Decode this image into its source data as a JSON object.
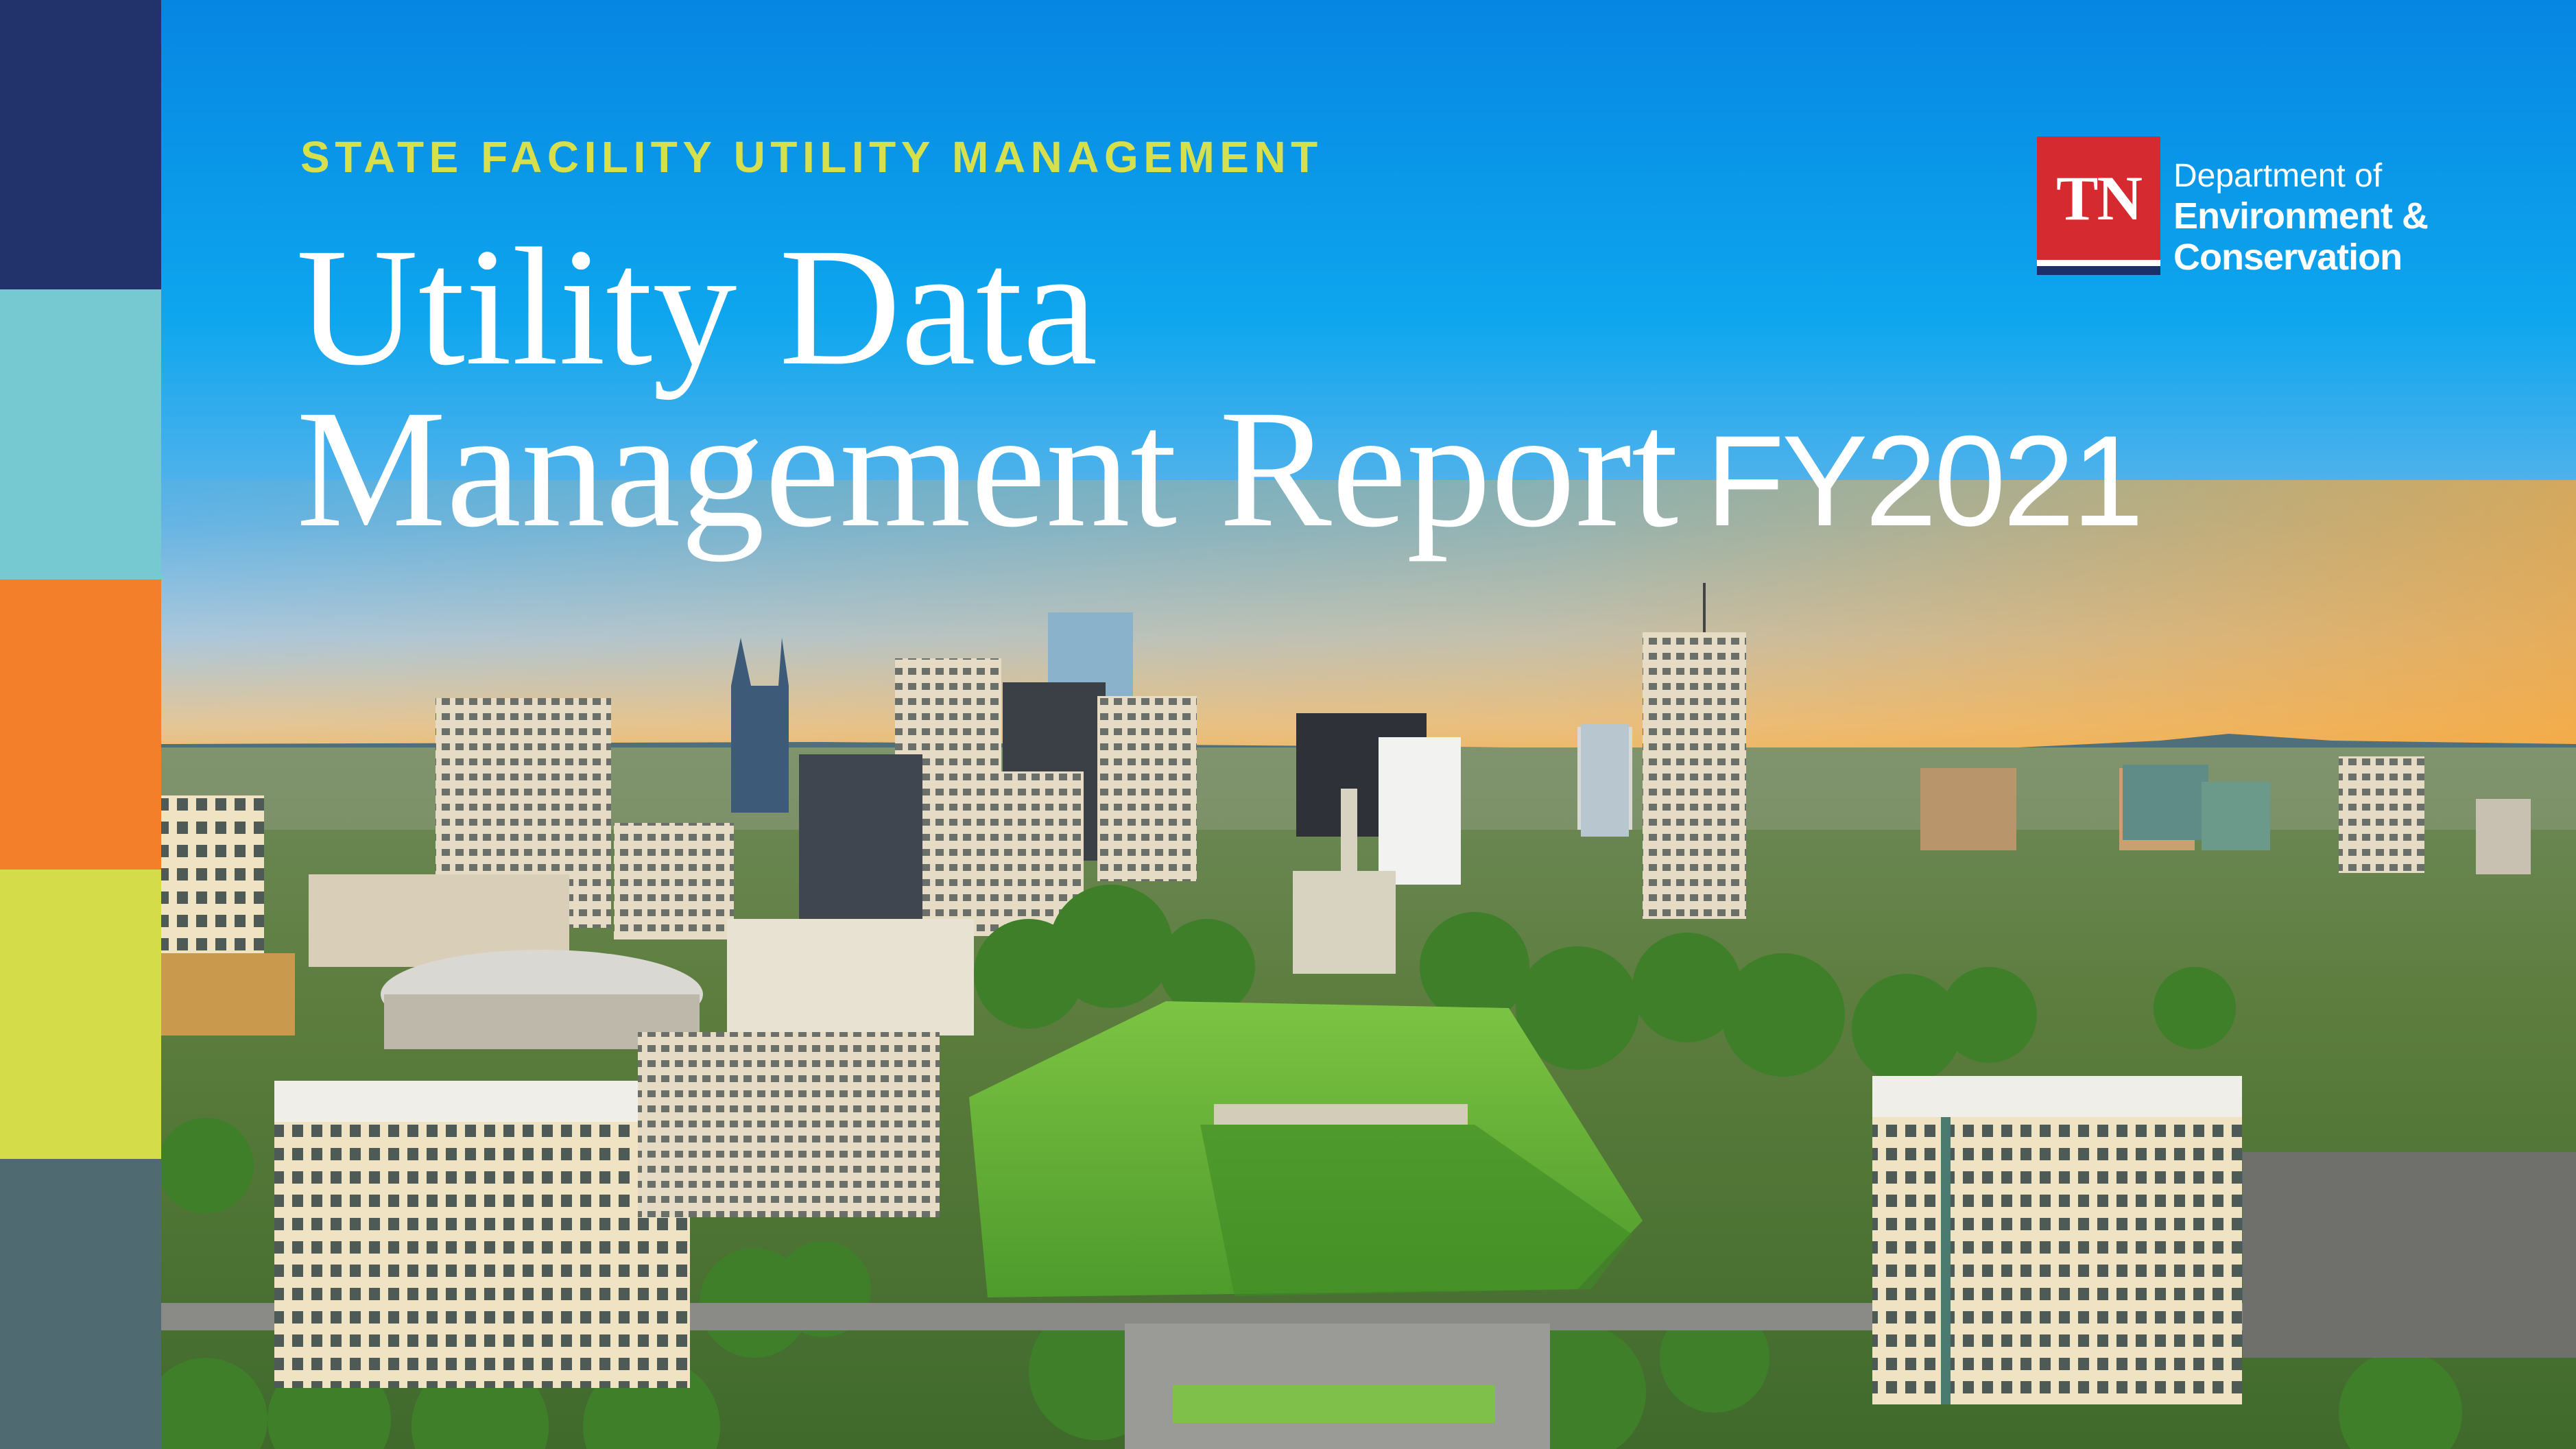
{
  "colors": {
    "stripes": [
      "#22336b",
      "#76c9d1",
      "#f47f2a",
      "#d4dc4a",
      "#4f6a70"
    ],
    "subtitle": "#d6df4c",
    "logo_red": "#d52b30",
    "logo_navy": "#1d2f6b"
  },
  "cover": {
    "eyebrow": "STATE FACILITY UTILITY MANAGEMENT",
    "title_line1": "Utility Data",
    "title_line2": "Management Report",
    "fiscal_year": "FY2021"
  },
  "logo": {
    "mark": "TN",
    "line1": "Department of",
    "line2": "Environment &",
    "line3": "Conservation"
  }
}
